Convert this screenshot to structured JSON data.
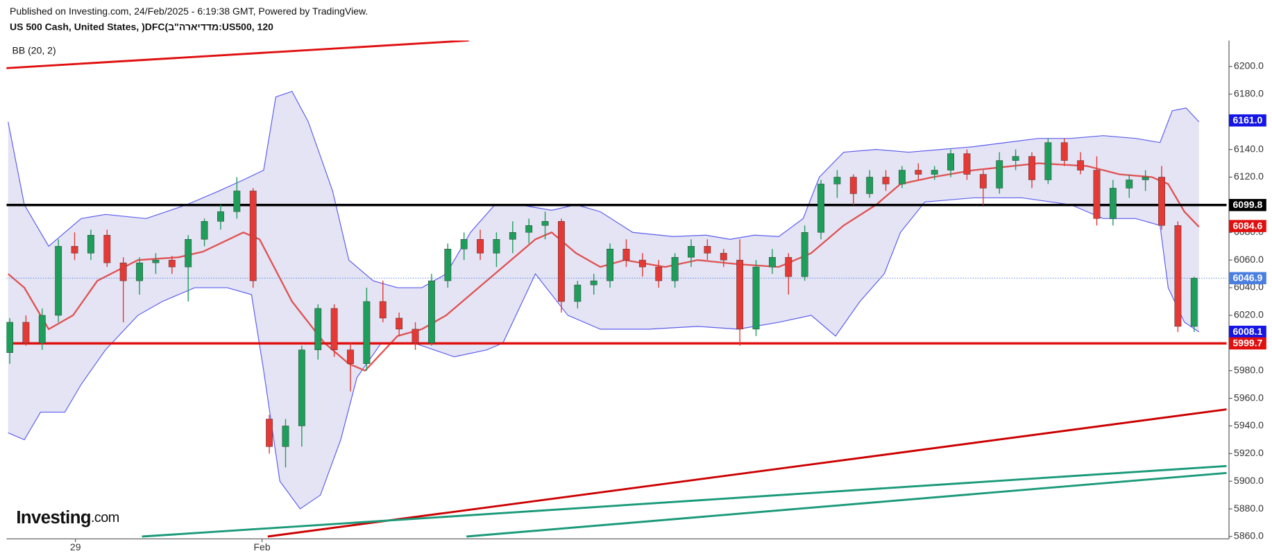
{
  "chart_data": {
    "type": "candlestick",
    "published": "Published on Investing.com, 24/Feb/2025 - 6:19:38 GMT, Powered by TradingView.",
    "title": "US 500 Cash, United States, )DFC(ב\"הראידדמ:US500, 120",
    "indicator": "BB (20, 2)",
    "logo": {
      "name": "Investing",
      "suffix": ".com"
    },
    "xlim": [
      -0.2,
      75
    ],
    "xticks": [
      {
        "value": 4.05,
        "label": "29"
      },
      {
        "value": 15.55,
        "label": "Feb"
      }
    ],
    "ylim": [
      5858.3,
      6218.8
    ],
    "yticks": [
      {
        "value": 5860,
        "label": "5860.0"
      },
      {
        "value": 5880,
        "label": "5880.0"
      },
      {
        "value": 5900,
        "label": "5900.0"
      },
      {
        "value": 5920,
        "label": "5920.0"
      },
      {
        "value": 5940,
        "label": "5940.0"
      },
      {
        "value": 5960,
        "label": "5960.0"
      },
      {
        "value": 5980,
        "label": "5980.0"
      },
      {
        "value": 6000,
        "label": "6000.0"
      },
      {
        "value": 6020,
        "label": "6020.0"
      },
      {
        "value": 6040,
        "label": "6040.0"
      },
      {
        "value": 6060,
        "label": "6060.0"
      },
      {
        "value": 6080,
        "label": "6080.0"
      },
      {
        "value": 6100,
        "label": "6100.0"
      },
      {
        "value": 6120,
        "label": "6120.0"
      },
      {
        "value": 6140,
        "label": "6140.0"
      },
      {
        "value": 6160,
        "label": "6160.0"
      },
      {
        "value": 6180,
        "label": "6180.0"
      },
      {
        "value": 6200,
        "label": "6200.0"
      }
    ],
    "up_color": "#1e9e5a",
    "down_color": "#e53935",
    "open": [
      5993,
      6015,
      6000,
      6020,
      6070,
      6065,
      6078,
      6058,
      6045,
      6058,
      6060,
      6055,
      6075,
      6088,
      6095,
      6110,
      5945,
      5925,
      5940,
      5995,
      6025,
      5995,
      5985,
      6030,
      6018,
      6010,
      6000,
      6045,
      6068,
      6075,
      6065,
      6075,
      6080,
      6085,
      6088,
      6030,
      6042,
      6045,
      6068,
      6060,
      6055,
      6045,
      6062,
      6070,
      6065,
      6060,
      6010,
      6055,
      6062,
      6048,
      6080,
      6115,
      6120,
      6108,
      6120,
      6115,
      6125,
      6122,
      6125,
      6137,
      6122,
      6112,
      6132,
      6135,
      6118,
      6145,
      6132,
      6125,
      6090,
      6112,
      6118,
      6120,
      6085,
      6012
    ],
    "high": [
      6018,
      6020,
      6025,
      6075,
      6080,
      6082,
      6082,
      6062,
      6062,
      6065,
      6063,
      6078,
      6090,
      6100,
      6120,
      6112,
      5948,
      5945,
      5998,
      6028,
      6028,
      6000,
      6040,
      6045,
      6022,
      6015,
      6050,
      6072,
      6080,
      6082,
      6080,
      6088,
      6090,
      6095,
      6090,
      6045,
      6050,
      6072,
      6075,
      6065,
      6060,
      6065,
      6075,
      6075,
      6068,
      6075,
      6060,
      6068,
      6065,
      6085,
      6118,
      6125,
      6122,
      6125,
      6125,
      6128,
      6130,
      6128,
      6140,
      6140,
      6125,
      6138,
      6140,
      6138,
      6148,
      6148,
      6138,
      6135,
      6118,
      6122,
      6125,
      6128,
      6088,
      6048
    ],
    "low": [
      5985,
      5998,
      5995,
      6015,
      6060,
      6060,
      6055,
      6015,
      6035,
      6050,
      6050,
      6030,
      6070,
      6082,
      6090,
      6040,
      5920,
      5910,
      5925,
      5988,
      5990,
      5965,
      5980,
      6015,
      6005,
      5995,
      5998,
      6040,
      6060,
      6060,
      6055,
      6065,
      6072,
      6075,
      6022,
      6025,
      6035,
      6040,
      6055,
      6048,
      6040,
      6040,
      6055,
      6060,
      6055,
      5998,
      6005,
      6050,
      6035,
      6045,
      6075,
      6105,
      6100,
      6105,
      6110,
      6112,
      6118,
      6118,
      6120,
      6118,
      6100,
      6108,
      6125,
      6112,
      6115,
      6128,
      6122,
      6085,
      6085,
      6105,
      6110,
      6082,
      6008,
      6008
    ],
    "close": [
      6015,
      6000,
      6020,
      6070,
      6065,
      6078,
      6058,
      6045,
      6058,
      6060,
      6055,
      6075,
      6088,
      6095,
      6110,
      6045,
      5925,
      5940,
      5995,
      6025,
      5995,
      5985,
      6030,
      6018,
      6010,
      6000,
      6045,
      6068,
      6075,
      6065,
      6075,
      6080,
      6085,
      6088,
      6030,
      6042,
      6045,
      6068,
      6060,
      6055,
      6045,
      6062,
      6070,
      6065,
      6060,
      6010,
      6055,
      6062,
      6048,
      6080,
      6115,
      6120,
      6108,
      6120,
      6115,
      6125,
      6122,
      6125,
      6137,
      6122,
      6112,
      6132,
      6135,
      6118,
      6145,
      6132,
      6125,
      6090,
      6112,
      6118,
      6120,
      6085,
      6012,
      6046.9
    ],
    "bands": [
      {
        "name": "upper",
        "color": "#5c5cf0",
        "x": [
          -0.1,
          0.9,
          2.4,
          4.4,
          5.9,
          8.4,
          10.9,
          12.9,
          14.4,
          15.65,
          16.4,
          17.4,
          18.4,
          19.9,
          20.9,
          22.4,
          23.9,
          25.4,
          26.9,
          28.4,
          29.9,
          31.4,
          33.4,
          34.9,
          36.4,
          38.4,
          40.9,
          42.9,
          44.4,
          45.9,
          47.4,
          48.9,
          49.9,
          51.4,
          53.4,
          55.4,
          57.4,
          59.4,
          61.4,
          63.4,
          65.4,
          67.4,
          69.4,
          70.9,
          71.65,
          72.5,
          73.3
        ],
        "values": [
          6160,
          6100,
          6070,
          6090,
          6093,
          6090,
          6100,
          6110,
          6118,
          6125,
          6178,
          6182,
          6160,
          6110,
          6060,
          6045,
          6040,
          6040,
          6050,
          6080,
          6100,
          6100,
          6096,
          6100,
          6095,
          6080,
          6077,
          6078,
          6075,
          6078,
          6077,
          6090,
          6120,
          6138,
          6140,
          6138,
          6140,
          6142,
          6145,
          6148,
          6148,
          6150,
          6148,
          6145,
          6168,
          6170,
          6160
        ]
      },
      {
        "name": "lower",
        "color": "#5c5cf0",
        "x": [
          -0.1,
          0.9,
          1.9,
          3.4,
          4.4,
          5.9,
          7.9,
          9.4,
          11.4,
          13.4,
          14.9,
          15.65,
          16.65,
          17.9,
          19.15,
          20.4,
          21.4,
          22.9,
          24.9,
          27.4,
          29.4,
          30.4,
          32.4,
          34.4,
          36.4,
          39.4,
          42.4,
          44.9,
          47.4,
          49.4,
          50.9,
          52.4,
          53.9,
          54.9,
          56.4,
          59.4,
          62.4,
          65.4,
          67.4,
          69.4,
          70.9,
          71.4,
          72.4,
          73.3
        ],
        "values": [
          5935,
          5930,
          5950,
          5950,
          5970,
          5995,
          6020,
          6030,
          6040,
          6040,
          6035,
          5980,
          5900,
          5880,
          5890,
          5930,
          5975,
          6000,
          6000,
          5990,
          5995,
          6000,
          6050,
          6020,
          6010,
          6010,
          6012,
          6010,
          6015,
          6020,
          6005,
          6030,
          6050,
          6080,
          6102,
          6105,
          6105,
          6100,
          6090,
          6090,
          6085,
          6040,
          6015,
          6008
        ]
      },
      {
        "name": "basis",
        "color": "#e05252",
        "x": [
          -0.1,
          0.9,
          2.4,
          3.9,
          5.4,
          7.9,
          10.4,
          11.9,
          14.4,
          15.4,
          17.4,
          19.4,
          20.9,
          21.9,
          23.9,
          25.4,
          26.9,
          28.9,
          30.9,
          32.4,
          33.4,
          34.9,
          36.4,
          37.9,
          40.4,
          42.4,
          44.9,
          47.4,
          49.4,
          51.4,
          53.4,
          54.9,
          56.9,
          59.4,
          63.4,
          66.4,
          68.4,
          70.4,
          71.4,
          72.4,
          73.3
        ],
        "values": [
          6050,
          6040,
          6010,
          6020,
          6045,
          6060,
          6062,
          6066,
          6080,
          6075,
          6030,
          6000,
          5985,
          5980,
          6005,
          6010,
          6020,
          6040,
          6060,
          6075,
          6080,
          6065,
          6055,
          6060,
          6055,
          6060,
          6057,
          6055,
          6065,
          6085,
          6100,
          6115,
          6120,
          6125,
          6130,
          6128,
          6122,
          6120,
          6115,
          6095,
          6084
        ]
      }
    ],
    "band_fill": "#e4e4f4",
    "hlines": [
      {
        "value": 6099.8,
        "color": "#000000"
      },
      {
        "value": 5999.7,
        "color": "#e01010"
      }
    ],
    "current_line": {
      "value": 6046.9,
      "color": "#4a7fe0"
    },
    "trendlines": [
      {
        "x": [
          -0.25,
          28.3
        ],
        "values": [
          6198.8,
          6218.8
        ],
        "color": "#e01010"
      },
      {
        "x": [
          15.9,
          75
        ],
        "values": [
          5860,
          5952
        ],
        "color": "#cc0000"
      },
      {
        "x": [
          8.15,
          75
        ],
        "values": [
          5860,
          5911
        ],
        "color": "#1a9a7a"
      },
      {
        "x": [
          28.15,
          75
        ],
        "values": [
          5860,
          5906
        ],
        "color": "#1a9a7a"
      }
    ],
    "price_labels": [
      {
        "value": 6161,
        "label": "6161.0",
        "color": "#1515e6"
      },
      {
        "value": 6099.8,
        "label": "6099.8",
        "color": "#000000"
      },
      {
        "value": 6084.6,
        "label": "6084.6",
        "color": "#e01010"
      },
      {
        "value": 6046.9,
        "label": "6046.9",
        "color": "#4a7fe0"
      },
      {
        "value": 6008.1,
        "label": "6008.1",
        "color": "#1515e6"
      },
      {
        "value": 5999.7,
        "label": "5999.7",
        "color": "#e01010"
      }
    ]
  }
}
